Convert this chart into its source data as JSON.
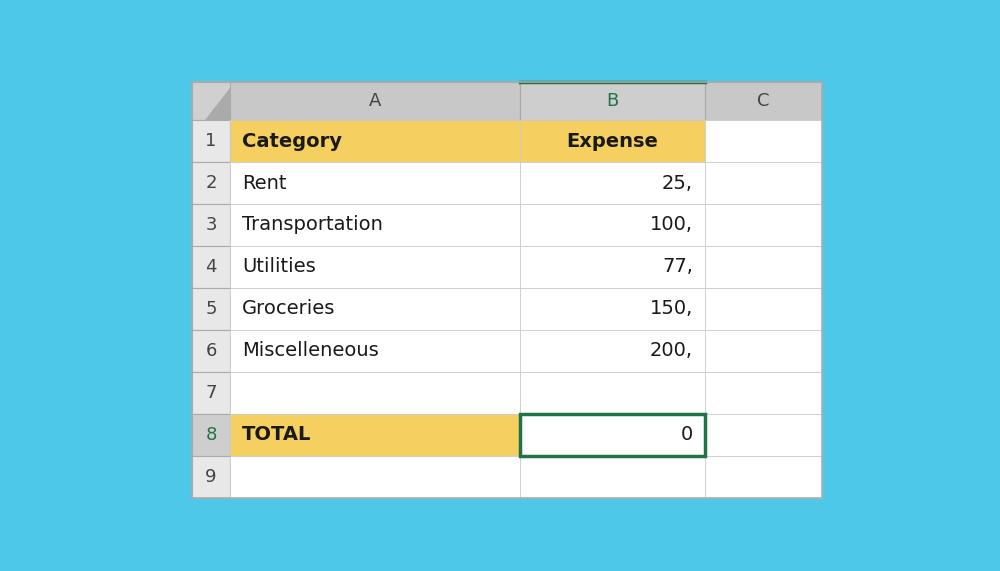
{
  "background_color": "#4DC8E8",
  "header_row_bg": "#C8C8C8",
  "row_number_bg": "#E8E8E8",
  "yellow_bg": "#F5D060",
  "selected_border_color": "#217346",
  "corner_bg": "#D0D0D0",
  "rows": [
    {
      "row_num": "1",
      "col_a": "Category",
      "col_b": "Expense",
      "a_bold": true,
      "b_bold": true,
      "a_bg": "#F5D060",
      "b_bg": "#F5D060",
      "b_center": true
    },
    {
      "row_num": "2",
      "col_a": "Rent",
      "col_b": "25,",
      "a_bold": false,
      "b_bold": false,
      "a_bg": "#FFFFFF",
      "b_bg": "#FFFFFF"
    },
    {
      "row_num": "3",
      "col_a": "Transportation",
      "col_b": "100,",
      "a_bold": false,
      "b_bold": false,
      "a_bg": "#FFFFFF",
      "b_bg": "#FFFFFF"
    },
    {
      "row_num": "4",
      "col_a": "Utilities",
      "col_b": "77,",
      "a_bold": false,
      "b_bold": false,
      "a_bg": "#FFFFFF",
      "b_bg": "#FFFFFF"
    },
    {
      "row_num": "5",
      "col_a": "Groceries",
      "col_b": "150,",
      "a_bold": false,
      "b_bold": false,
      "a_bg": "#FFFFFF",
      "b_bg": "#FFFFFF"
    },
    {
      "row_num": "6",
      "col_a": "Miscelleneous",
      "col_b": "200,",
      "a_bold": false,
      "b_bold": false,
      "a_bg": "#FFFFFF",
      "b_bg": "#FFFFFF"
    },
    {
      "row_num": "7",
      "col_a": "",
      "col_b": "",
      "a_bold": false,
      "b_bold": false,
      "a_bg": "#FFFFFF",
      "b_bg": "#FFFFFF"
    },
    {
      "row_num": "8",
      "col_a": "TOTAL",
      "col_b": "0",
      "a_bold": true,
      "b_bold": false,
      "a_bg": "#F5D060",
      "b_bg": "#FFFFFF",
      "b_selected": true
    },
    {
      "row_num": "9",
      "col_a": "",
      "col_b": "",
      "a_bold": false,
      "b_bold": false,
      "a_bg": "#FFFFFF",
      "b_bg": "#FFFFFF"
    }
  ]
}
